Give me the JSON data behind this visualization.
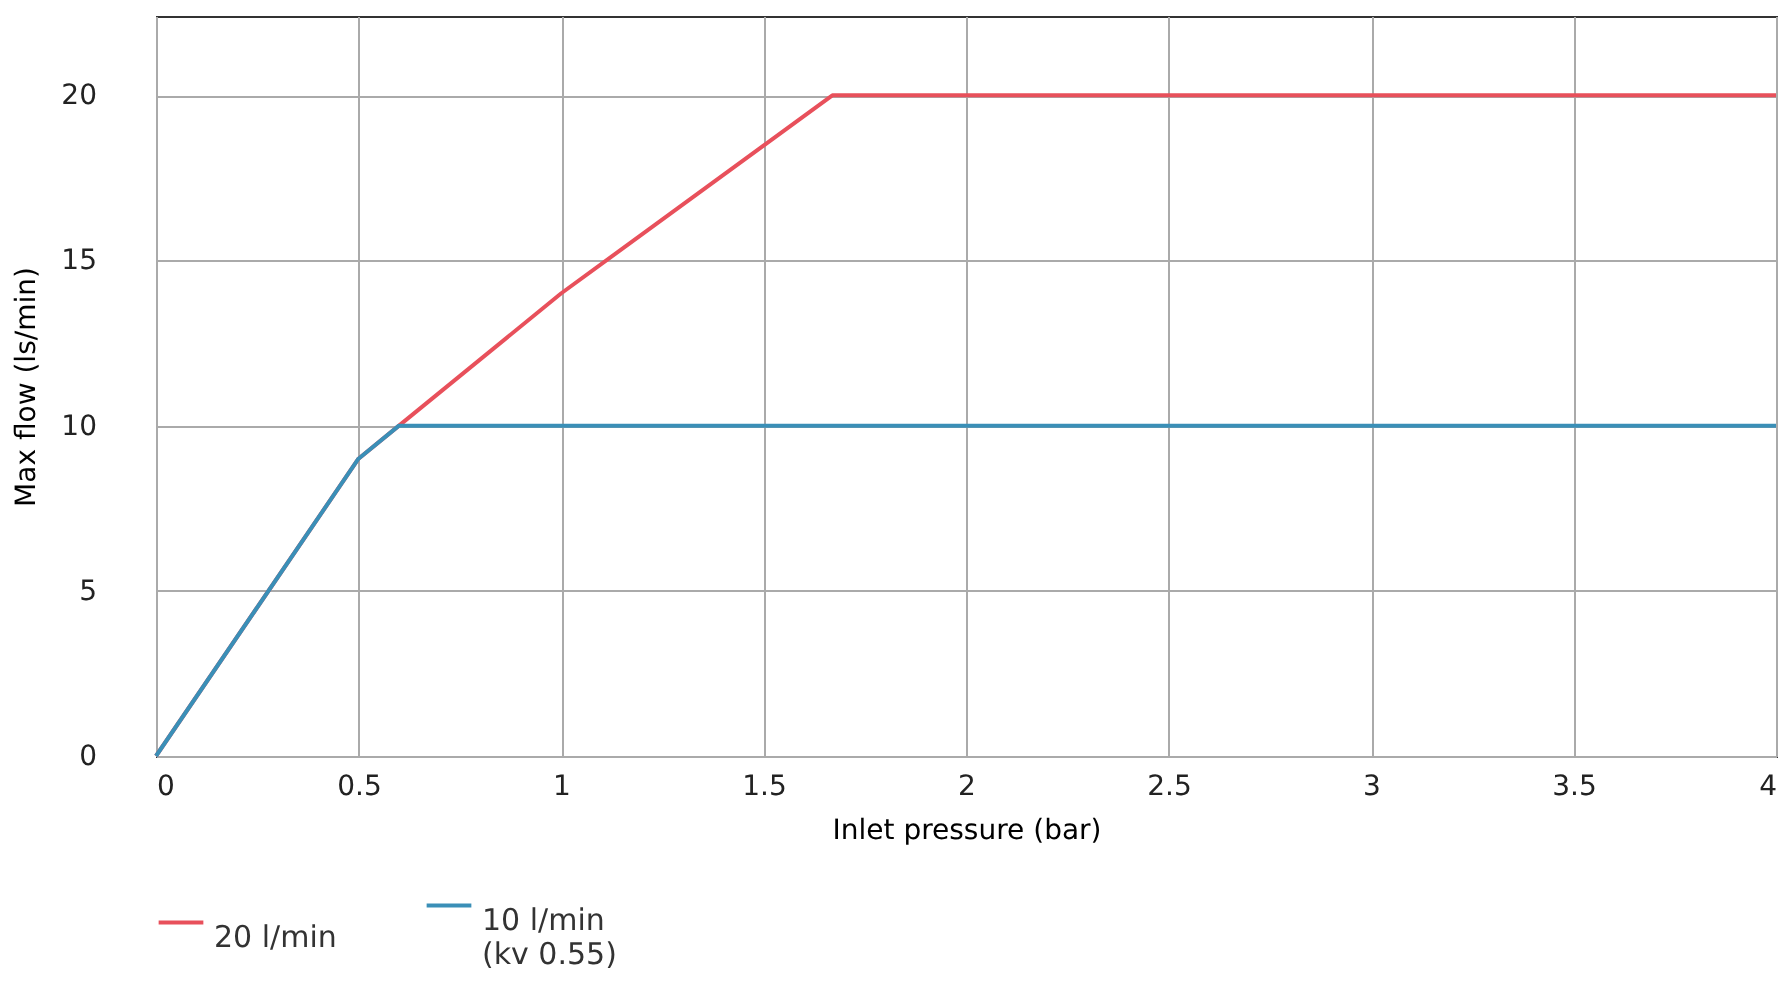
{
  "chart_data": {
    "type": "line",
    "xlabel": "Inlet pressure (bar)",
    "ylabel": "Max flow (ls/min)",
    "series": [
      {
        "name": "20 l/min",
        "color": "#e8505b",
        "x": [
          0,
          0.5,
          0.6,
          1,
          1.67,
          4
        ],
        "values": [
          0,
          9,
          10,
          14,
          20,
          20
        ]
      },
      {
        "name": "10 l/min\n(kv 0.55)",
        "color": "#3a8fb7",
        "x": [
          0,
          0.5,
          0.6,
          4
        ],
        "values": [
          0,
          9,
          10,
          10
        ]
      }
    ],
    "xlim": [
      0,
      4
    ],
    "xticks": [
      0,
      0.5,
      1,
      1.5,
      2,
      2.5,
      3,
      3.5,
      4
    ],
    "ylim": [
      0,
      22.4
    ],
    "yticks": [
      0,
      5,
      10,
      15,
      20
    ],
    "grid": true,
    "legend": "bottom",
    "marker": "none",
    "line_style": "solid"
  }
}
